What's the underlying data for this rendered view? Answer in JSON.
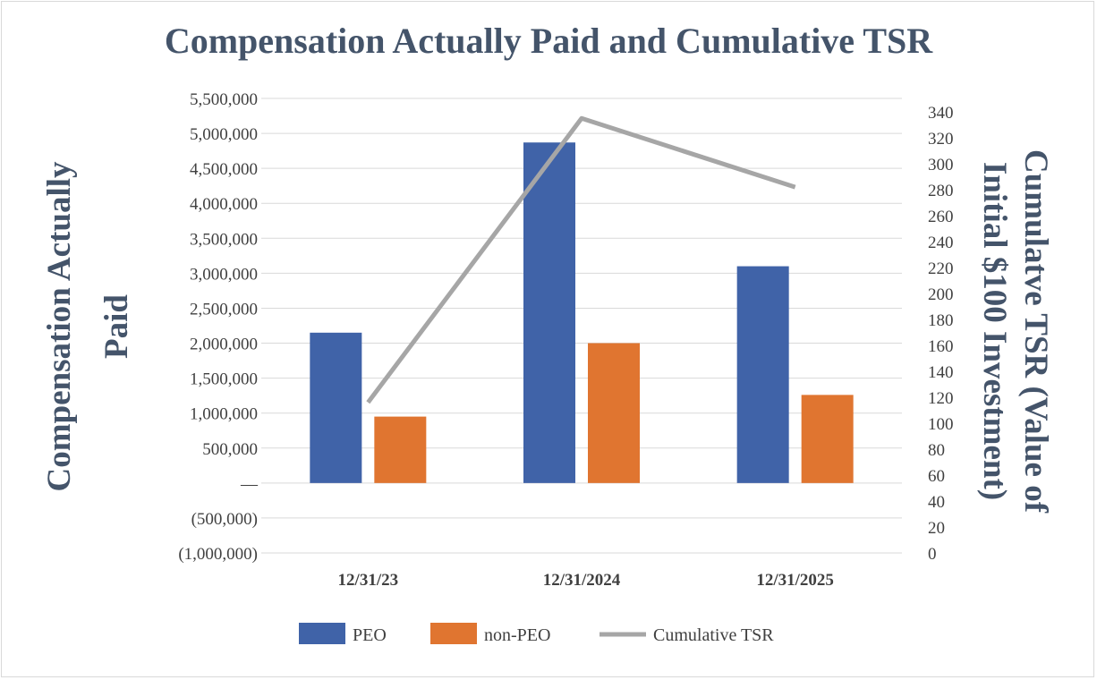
{
  "chart_data": {
    "type": "bar",
    "title": "Compensation Actually Paid and Cumulative TSR",
    "categories": [
      "12/31/23",
      "12/31/2024",
      "12/31/2025"
    ],
    "series": [
      {
        "name": "PEO",
        "type": "bar",
        "axis": "left",
        "color": "#4063a8",
        "values": [
          2150000,
          4870000,
          3100000
        ]
      },
      {
        "name": "non-PEO",
        "type": "bar",
        "axis": "left",
        "color": "#e07530",
        "values": [
          950000,
          2000000,
          1260000
        ]
      },
      {
        "name": "Cumulative TSR",
        "type": "line",
        "axis": "right",
        "color": "#a6a6a6",
        "values": [
          116,
          335,
          282
        ]
      }
    ],
    "y_left": {
      "label_lines": [
        "Compensation Actually",
        "Paid"
      ],
      "ylim": [
        -1000000,
        5500000
      ],
      "ticks": [
        {
          "value": 5500000,
          "label": "5,500,000"
        },
        {
          "value": 5000000,
          "label": "5,000,000"
        },
        {
          "value": 4500000,
          "label": "4,500,000"
        },
        {
          "value": 4000000,
          "label": "4,000,000"
        },
        {
          "value": 3500000,
          "label": "3,500,000"
        },
        {
          "value": 3000000,
          "label": "3,000,000"
        },
        {
          "value": 2500000,
          "label": "2,500,000"
        },
        {
          "value": 2000000,
          "label": "2,000,000"
        },
        {
          "value": 1500000,
          "label": "1,500,000"
        },
        {
          "value": 1000000,
          "label": "1,000,000"
        },
        {
          "value": 500000,
          "label": "500,000"
        },
        {
          "value": 0,
          "label": "—"
        },
        {
          "value": -500000,
          "label": "(500,000)"
        },
        {
          "value": -1000000,
          "label": "(1,000,000)"
        }
      ]
    },
    "y_right": {
      "label_lines": [
        "Cumulatve TSR (Value of",
        "Initial $100 Investment)"
      ],
      "ylim": [
        0,
        340
      ],
      "ticks": [
        340,
        320,
        300,
        280,
        260,
        240,
        220,
        200,
        180,
        160,
        140,
        120,
        100,
        80,
        60,
        40,
        20,
        0
      ]
    },
    "grid": true,
    "legend_position": "bottom"
  }
}
